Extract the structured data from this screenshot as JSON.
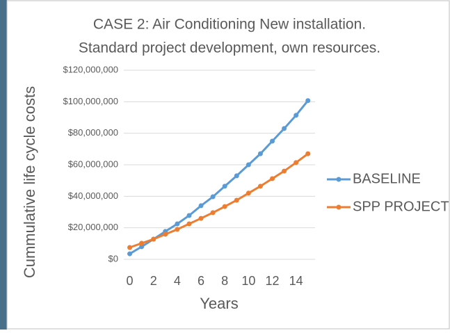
{
  "chart_data": {
    "type": "line",
    "title": "CASE 2: Air Conditioning New installation.",
    "subtitle": "Standard project development, own resources.",
    "x_label": "Years",
    "y_label": "Cummulative life cycle costs",
    "x": [
      0,
      1,
      2,
      3,
      4,
      5,
      6,
      7,
      8,
      9,
      10,
      11,
      12,
      13,
      14,
      15
    ],
    "series": [
      {
        "name": "BASELINE",
        "color": "#5b9bd5",
        "values": [
          3500000,
          8000000,
          12800000,
          17700000,
          22500000,
          27800000,
          34000000,
          39700000,
          46400000,
          53000000,
          60000000,
          67000000,
          75000000,
          83000000,
          91400000,
          100700000
        ]
      },
      {
        "name": "SPP PROJECT",
        "color": "#ed7d31",
        "values": [
          7500000,
          10200000,
          12800000,
          15900000,
          19000000,
          22500000,
          26000000,
          29600000,
          33500000,
          37500000,
          42000000,
          46400000,
          51200000,
          56000000,
          61400000,
          67000000
        ]
      }
    ],
    "xlim": [
      -0.5,
      15.6
    ],
    "xticks": [
      0,
      2,
      4,
      6,
      8,
      10,
      12,
      14
    ],
    "ylim": [
      0,
      120000000
    ],
    "yticks": [
      {
        "value": 0,
        "label": "$0"
      },
      {
        "value": 20000000,
        "label": "$20,000,000"
      },
      {
        "value": 40000000,
        "label": "$40,000,000"
      },
      {
        "value": 60000000,
        "label": "$60,000,000"
      },
      {
        "value": 80000000,
        "label": "$80,000,000"
      },
      {
        "value": 100000000,
        "label": "$100,000,000"
      },
      {
        "value": 120000000,
        "label": "$120,000,000"
      }
    ],
    "grid": true,
    "legend": "right"
  }
}
